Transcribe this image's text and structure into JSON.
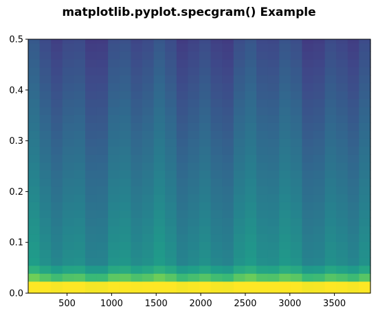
{
  "chart_data": {
    "type": "heatmap",
    "title": "matplotlib.pyplot.specgram() Example",
    "xlabel": "",
    "ylabel": "",
    "xlim": [
      64,
      3904
    ],
    "ylim": [
      0,
      0.5
    ],
    "x_ticks": [
      500,
      1000,
      1500,
      2000,
      2500,
      3000,
      3500
    ],
    "y_ticks": [
      0.0,
      0.1,
      0.2,
      0.3,
      0.4,
      0.5
    ],
    "x_tick_labels": [
      "500",
      "1000",
      "1500",
      "2000",
      "2500",
      "3000",
      "3500"
    ],
    "y_tick_labels": [
      "0.0",
      "0.1",
      "0.2",
      "0.3",
      "0.4",
      "0.5"
    ],
    "grid": false,
    "colormap": "viridis",
    "time_columns_center": [
      128,
      256,
      384,
      512,
      640,
      768,
      896,
      1024,
      1152,
      1280,
      1408,
      1536,
      1664,
      1792,
      1920,
      2048,
      2176,
      2304,
      2432,
      2560,
      2688,
      2816,
      2944,
      3072,
      3200,
      3328,
      3456,
      3584,
      3712,
      3840
    ],
    "frequency_bins": [
      0.0,
      0.015625,
      0.03125,
      0.046875,
      0.0625,
      0.078125,
      0.09375,
      0.109375,
      0.125,
      0.140625,
      0.15625,
      0.171875,
      0.1875,
      0.203125,
      0.21875,
      0.234375,
      0.25,
      0.265625,
      0.28125,
      0.296875,
      0.3125,
      0.328125,
      0.34375,
      0.359375,
      0.375,
      0.390625,
      0.40625,
      0.421875,
      0.4375,
      0.453125,
      0.46875,
      0.484375,
      0.5
    ],
    "colormap_stops": [
      "#440154",
      "#482878",
      "#3e4989",
      "#31688e",
      "#26828e",
      "#1f9e89",
      "#35b779",
      "#6ece58",
      "#b5de2b",
      "#fde725"
    ],
    "color_scale_range": [
      0,
      1
    ]
  }
}
